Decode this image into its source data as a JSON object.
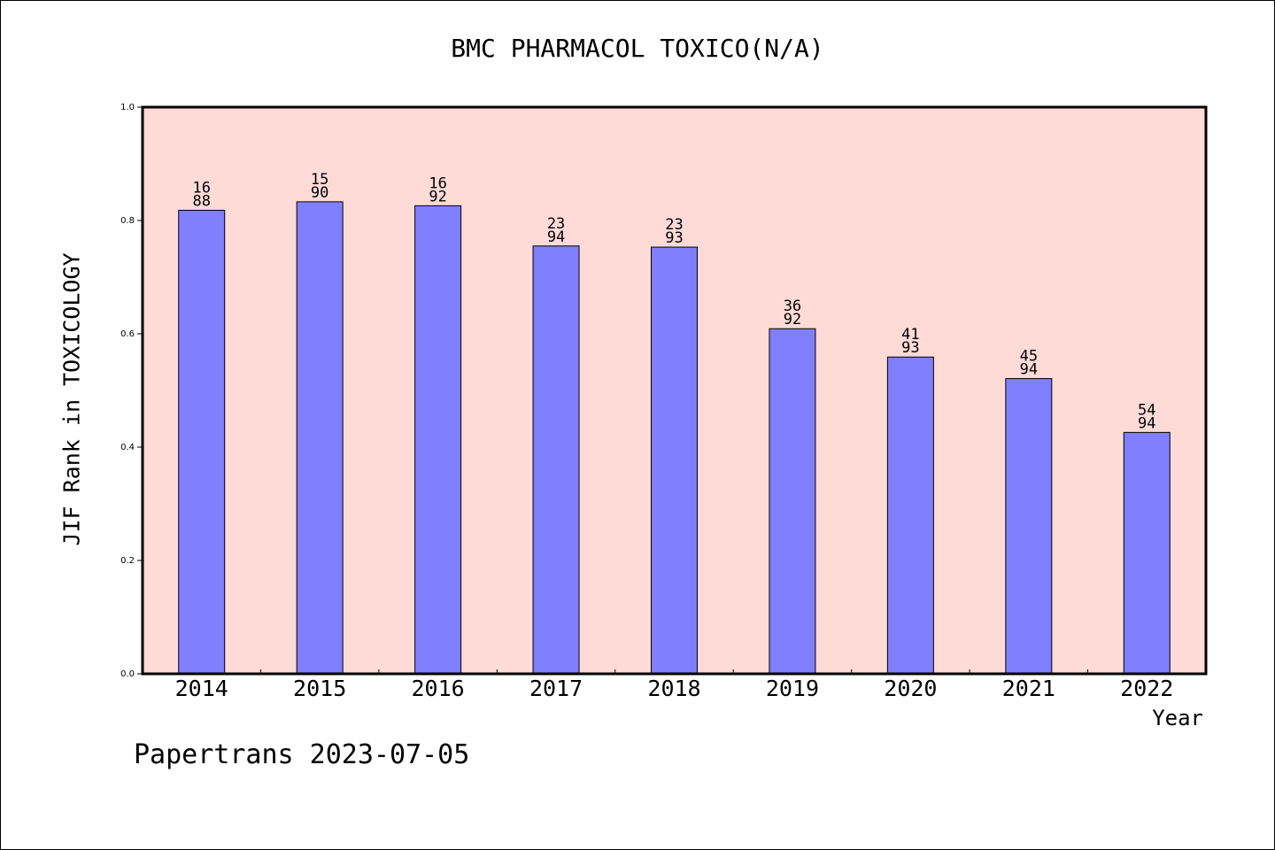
{
  "chart_data": {
    "type": "bar",
    "title": "BMC PHARMACOL TOXICO(N/A)",
    "xlabel": "Year",
    "ylabel": "JIF Rank in TOXICOLOGY",
    "ylim": [
      0,
      1.0
    ],
    "yticks": [
      "0.0",
      "0.2",
      "0.4",
      "0.6",
      "0.8",
      "1.0"
    ],
    "categories": [
      "2014",
      "2015",
      "2016",
      "2017",
      "2018",
      "2019",
      "2020",
      "2021",
      "2022"
    ],
    "values": [
      0.818,
      0.833,
      0.826,
      0.755,
      0.753,
      0.609,
      0.559,
      0.521,
      0.426
    ],
    "rank_labels": [
      {
        "rank": "16",
        "total": "88"
      },
      {
        "rank": "15",
        "total": "90"
      },
      {
        "rank": "16",
        "total": "92"
      },
      {
        "rank": "23",
        "total": "94"
      },
      {
        "rank": "23",
        "total": "93"
      },
      {
        "rank": "36",
        "total": "92"
      },
      {
        "rank": "41",
        "total": "93"
      },
      {
        "rank": "45",
        "total": "94"
      },
      {
        "rank": "54",
        "total": "94"
      }
    ],
    "colors": {
      "plot_background": "#ffdbd8",
      "bar_fill": "#8080ff",
      "bar_stroke": "#000000"
    },
    "grid": false,
    "legend": "none"
  },
  "footer": {
    "text": "Papertrans 2023-07-05"
  }
}
